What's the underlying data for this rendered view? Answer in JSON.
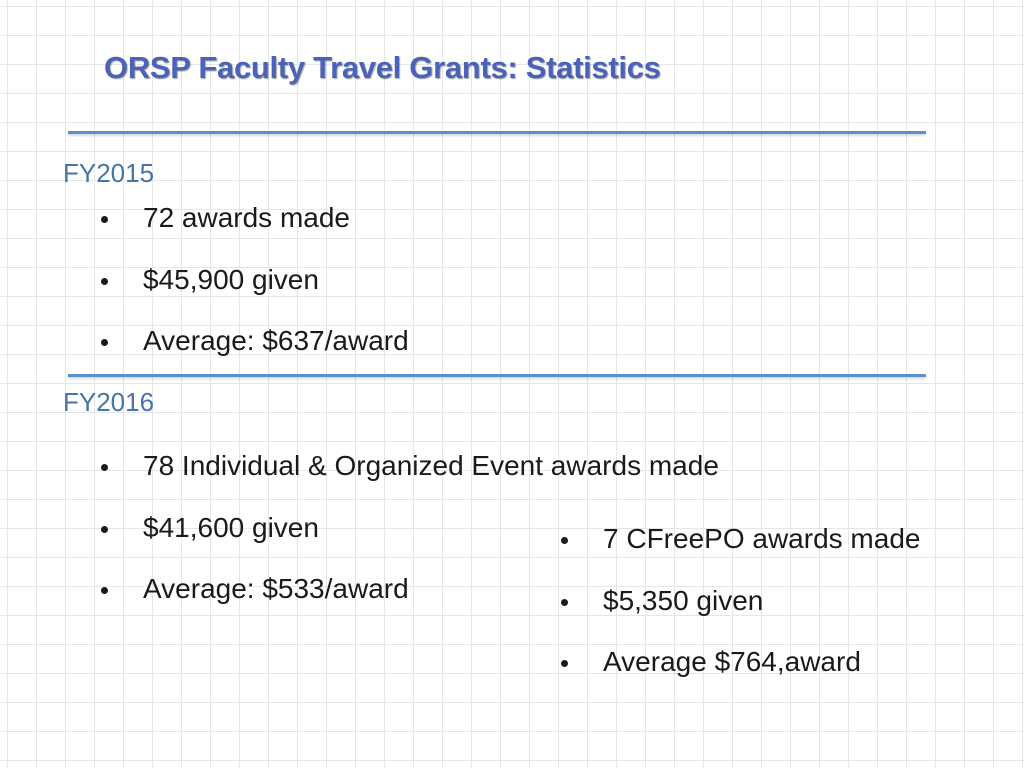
{
  "slide": {
    "title": "ORSP Faculty Travel Grants: Statistics",
    "colors": {
      "title": "#4a62b8",
      "section_label": "#4a74a8",
      "rule": "#5b8fd0",
      "text": "#1a1a1a",
      "grid": "#e4e6ea"
    }
  },
  "fy2015": {
    "label": "FY2015",
    "bullets": [
      "72 awards made",
      "$45,900 given",
      "Average: $637/award"
    ]
  },
  "fy2016": {
    "label": "FY2016",
    "bullets": [
      "78 Individual & Organized Event awards made",
      "$41,600 given",
      "Average: $533/award"
    ],
    "cfreepo_bullets": [
      "7 CFreePO awards made",
      "$5,350 given",
      "Average $764,award"
    ]
  }
}
